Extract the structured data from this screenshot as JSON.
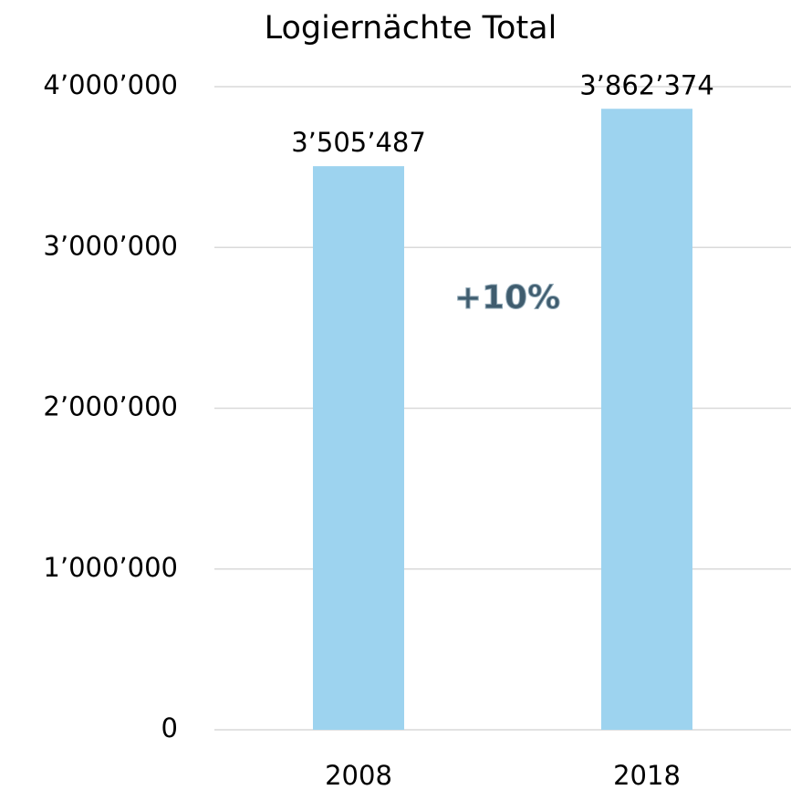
{
  "chart_data": {
    "type": "bar",
    "title": "Logiernächte Total",
    "categories": [
      "2008",
      "2018"
    ],
    "values": [
      3505487,
      3862374
    ],
    "value_labels": [
      "3’505’487",
      "3’862’374"
    ],
    "color": "#9dd3ef",
    "annotation": "+10%",
    "ylim": [
      0,
      4000000
    ],
    "yticks": [
      0,
      {
        "value": 1000000,
        "label": "1’000’000"
      },
      {
        "value": 2000000,
        "label": "2’000’000"
      },
      {
        "value": 3000000,
        "label": "3’000’000"
      },
      {
        "value": 4000000,
        "label": "4’000’000"
      }
    ],
    "grid": true
  }
}
